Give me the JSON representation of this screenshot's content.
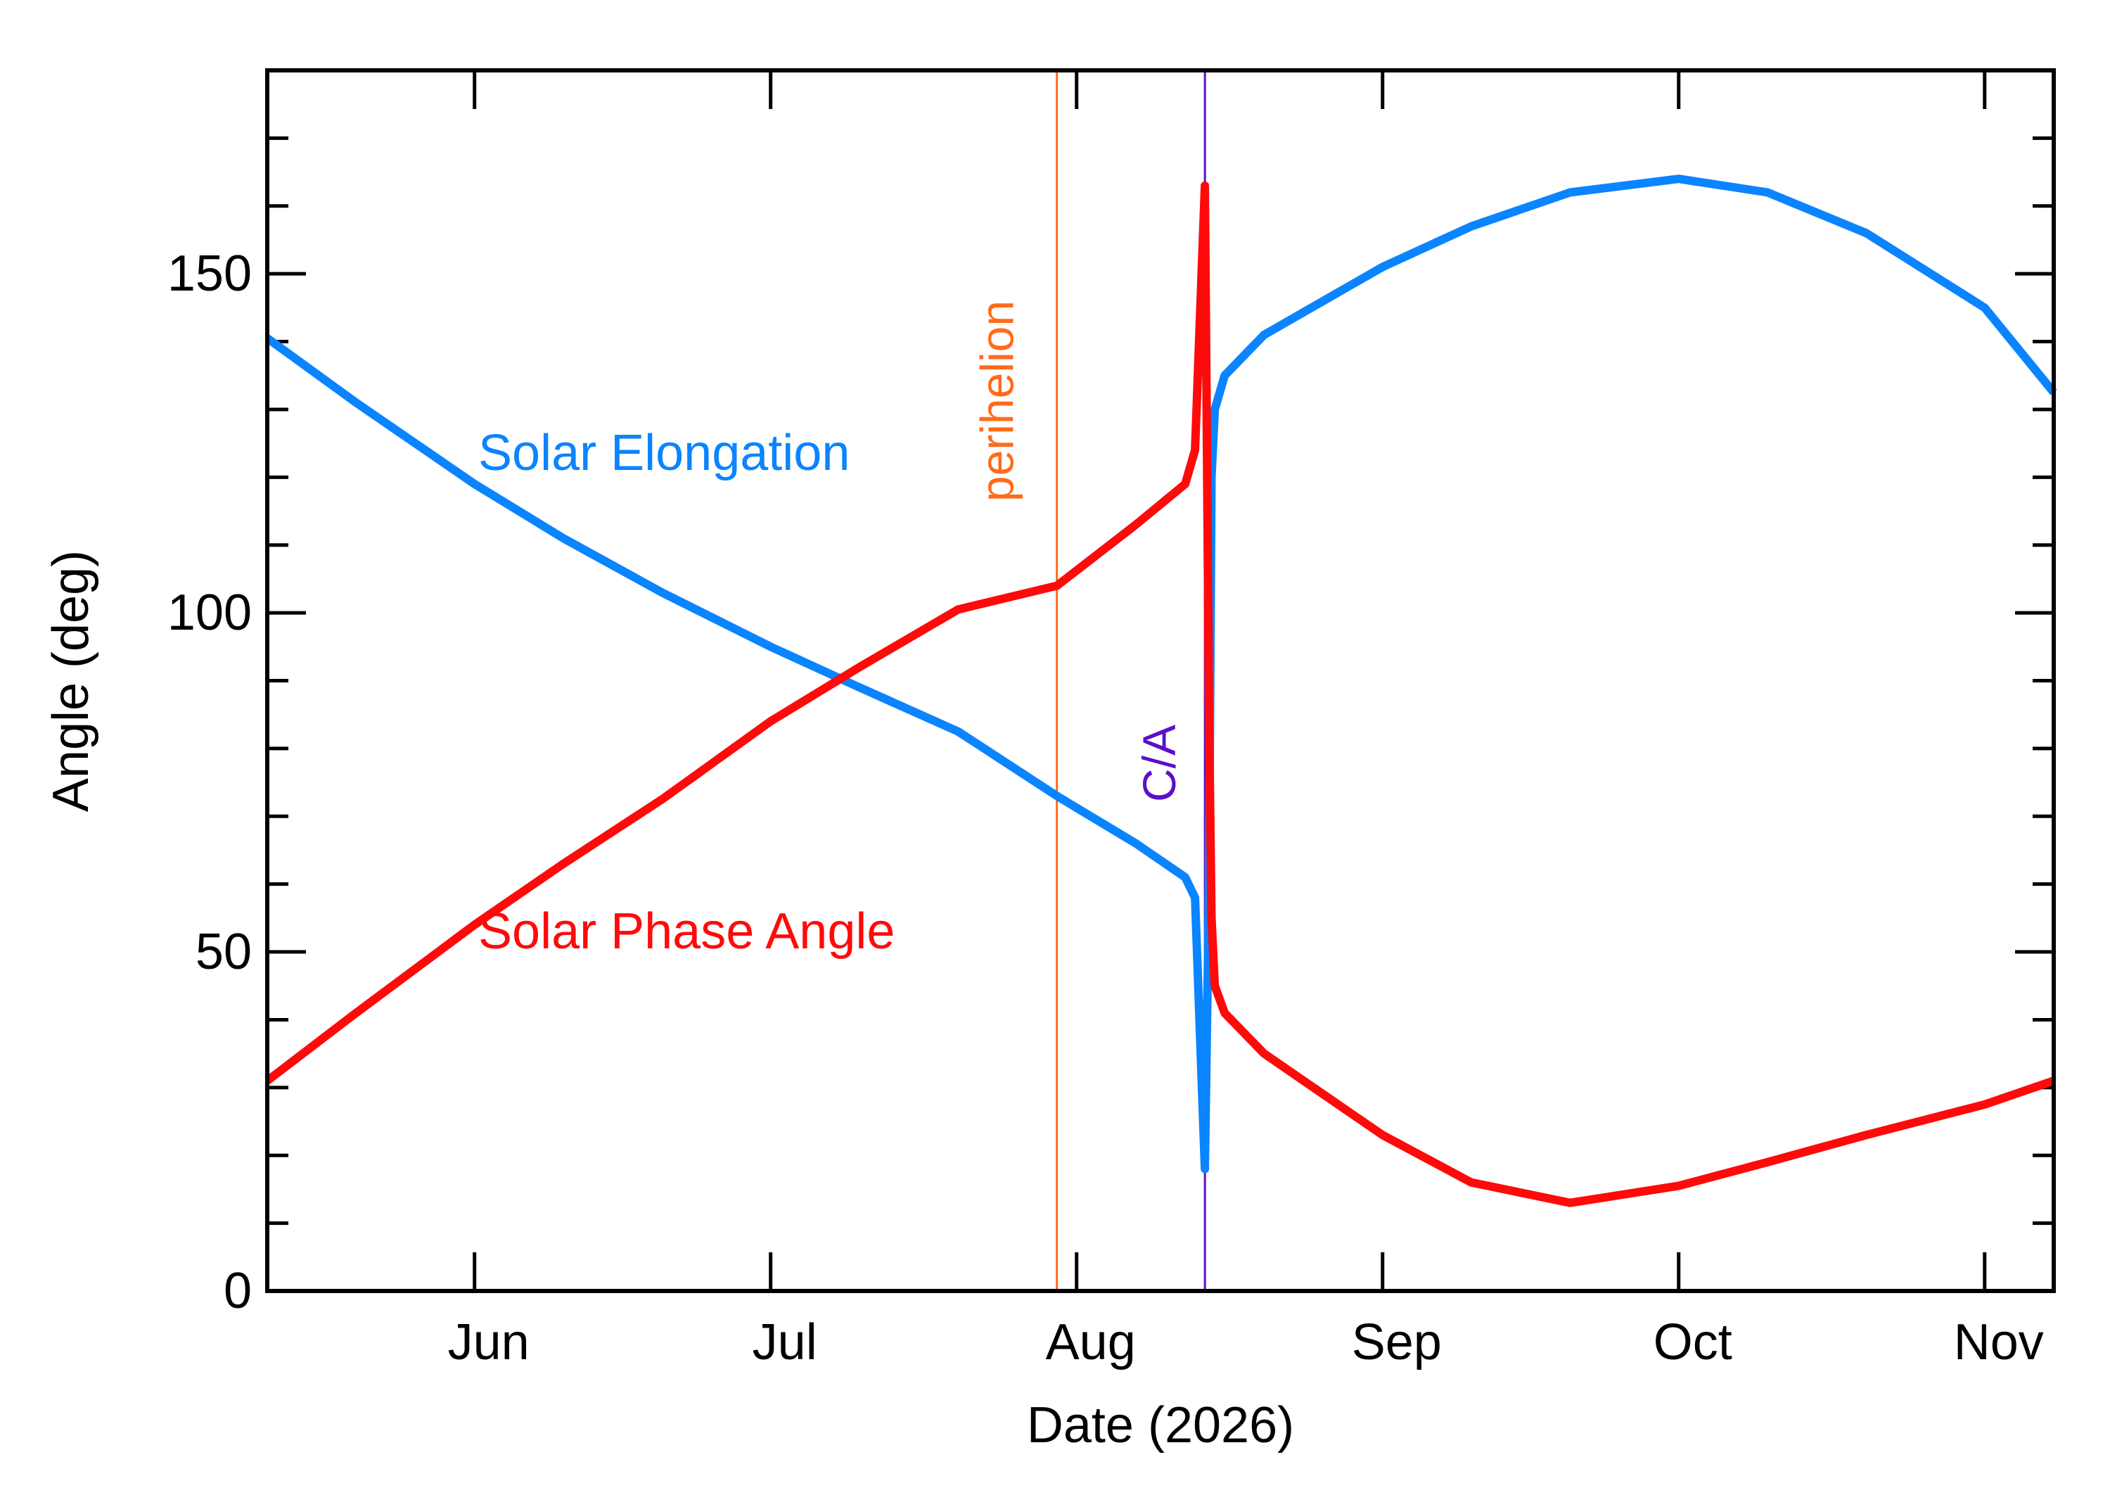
{
  "chart_data": {
    "type": "line",
    "xlabel": "Date (2026)",
    "ylabel": "Angle (deg)",
    "xlim": [
      "2026-05-11",
      "2026-11-08"
    ],
    "ylim": [
      0,
      180
    ],
    "x_ticks": [
      {
        "label": "Jun",
        "date": "2026-06-01"
      },
      {
        "label": "Jul",
        "date": "2026-07-01"
      },
      {
        "label": "Aug",
        "date": "2026-08-01"
      },
      {
        "label": "Sep",
        "date": "2026-09-01"
      },
      {
        "label": "Oct",
        "date": "2026-10-01"
      },
      {
        "label": "Nov",
        "date": "2026-11-01"
      }
    ],
    "y_ticks": [
      "0",
      "50",
      "100",
      "150"
    ],
    "y_tick_values": [
      0,
      50,
      100,
      150
    ],
    "y_minor_step": 10,
    "grid": false,
    "events": [
      {
        "label": "perihelion",
        "date": "2026-07-30",
        "color": "#ff6b1a"
      },
      {
        "label": "C/A",
        "date": "2026-08-14",
        "color": "#5b0fcc"
      }
    ],
    "series": [
      {
        "name": "Solar Elongation",
        "color": "#0a84ff",
        "x": [
          "2026-05-11",
          "2026-05-20",
          "2026-06-01",
          "2026-06-10",
          "2026-06-20",
          "2026-07-01",
          "2026-07-10",
          "2026-07-20",
          "2026-07-30",
          "2026-08-07",
          "2026-08-12",
          "2026-08-13",
          "2026-08-14",
          "2026-08-14T10:00",
          "2026-08-14T16:00",
          "2026-08-15",
          "2026-08-16",
          "2026-08-20",
          "2026-09-01",
          "2026-09-10",
          "2026-09-20",
          "2026-10-01",
          "2026-10-10",
          "2026-10-20",
          "2026-11-01",
          "2026-11-08"
        ],
        "y": [
          140.5,
          131,
          119,
          111,
          103,
          95,
          89,
          82.5,
          73,
          66,
          61,
          58,
          18,
          60,
          120,
          130,
          135,
          141,
          151,
          157,
          162,
          164,
          162,
          156,
          145,
          132.5
        ]
      },
      {
        "name": "Solar Phase Angle",
        "color": "#ff0a0a",
        "x": [
          "2026-05-11",
          "2026-05-20",
          "2026-06-01",
          "2026-06-10",
          "2026-06-20",
          "2026-07-01",
          "2026-07-10",
          "2026-07-20",
          "2026-07-30",
          "2026-08-07",
          "2026-08-12",
          "2026-08-13",
          "2026-08-14",
          "2026-08-14T10:00",
          "2026-08-14T16:00",
          "2026-08-15",
          "2026-08-16",
          "2026-08-20",
          "2026-09-01",
          "2026-09-10",
          "2026-09-20",
          "2026-10-01",
          "2026-10-10",
          "2026-10-20",
          "2026-11-01",
          "2026-11-08"
        ],
        "y": [
          31,
          41,
          54,
          63,
          72.5,
          84,
          92,
          100.5,
          104,
          113,
          119,
          124,
          163,
          85,
          55,
          45,
          41,
          35,
          23,
          16,
          13,
          15.5,
          19,
          23,
          27.5,
          31
        ]
      }
    ],
    "annotations": [
      {
        "text": "Solar Elongation",
        "series": 0
      },
      {
        "text": "Solar Phase Angle",
        "series": 1
      }
    ]
  }
}
